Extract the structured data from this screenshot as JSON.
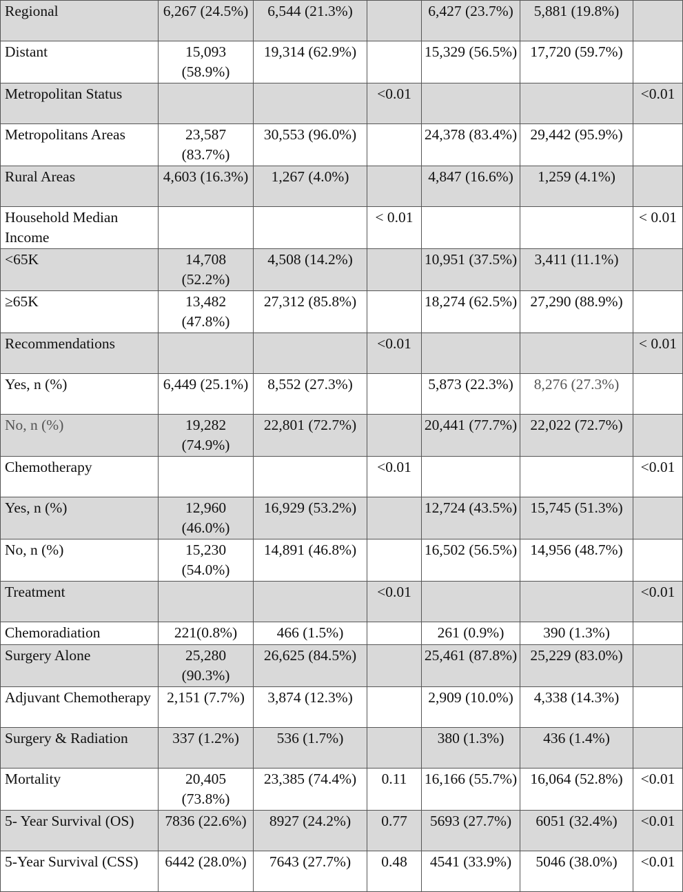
{
  "rows": [
    {
      "label": "Regional",
      "cells": [
        "6,267 (24.5%)",
        "6,544 (21.3%)",
        "",
        "6,427 (23.7%)",
        "5,881 (19.8%)",
        ""
      ]
    },
    {
      "label": "Distant",
      "cells": [
        "15,093 (58.9%)",
        "19,314 (62.9%)",
        "",
        "15,329 (56.5%)",
        "17,720 (59.7%)",
        ""
      ]
    },
    {
      "label": "Metropolitan Status",
      "cells": [
        "",
        "",
        "<0.01",
        "",
        "",
        "<0.01"
      ]
    },
    {
      "label": "Metropolitans Areas",
      "cells": [
        "23,587 (83.7%)",
        "30,553 (96.0%)",
        "",
        "24,378 (83.4%)",
        "29,442 (95.9%)",
        ""
      ]
    },
    {
      "label": "Rural Areas",
      "cells": [
        "4,603 (16.3%)",
        "1,267 (4.0%)",
        "",
        "4,847 (16.6%)",
        "1,259 (4.1%)",
        ""
      ]
    },
    {
      "label": "Household Median Income",
      "cells": [
        "",
        "",
        "< 0.01",
        "",
        "",
        "< 0.01"
      ]
    },
    {
      "label": "<65K",
      "cells": [
        "14,708 (52.2%)",
        "4,508 (14.2%)",
        "",
        "10,951 (37.5%)",
        "3,411 (11.1%)",
        ""
      ]
    },
    {
      "label": "≥65K",
      "cells": [
        "13,482 (47.8%)",
        "27,312 (85.8%)",
        "",
        "18,274 (62.5%)",
        "27,290 (88.9%)",
        ""
      ]
    },
    {
      "label": "Recommendations",
      "cells": [
        "",
        "",
        "<0.01",
        "",
        "",
        "< 0.01"
      ]
    },
    {
      "label": "Yes, n (%)",
      "cells": [
        "6,449 (25.1%)",
        "8,552 (27.3%)",
        "",
        "5,873 (22.3%)",
        "8,276 (27.3%)",
        ""
      ]
    },
    {
      "label": "No, n (%)",
      "cells": [
        "19,282 (74.9%)",
        "22,801 (72.7%)",
        "",
        "20,441 (77.7%)",
        "22,022 (72.7%)",
        ""
      ]
    },
    {
      "label": "Chemotherapy",
      "cells": [
        "",
        "",
        "<0.01",
        "",
        "",
        "<0.01"
      ]
    },
    {
      "label": "Yes, n (%)",
      "cells": [
        "12,960 (46.0%)",
        "16,929 (53.2%)",
        "",
        "12,724 (43.5%)",
        "15,745 (51.3%)",
        ""
      ]
    },
    {
      "label": "No, n (%)",
      "cells": [
        "15,230 (54.0%)",
        "14,891 (46.8%)",
        "",
        "16,502 (56.5%)",
        "14,956 (48.7%)",
        ""
      ]
    },
    {
      "label": "Treatment",
      "cells": [
        "",
        "",
        "<0.01",
        "",
        "",
        "<0.01"
      ]
    },
    {
      "label": "Chemoradiation",
      "cells": [
        "221(0.8%)",
        "466 (1.5%)",
        "",
        "261 (0.9%)",
        "390 (1.3%)",
        ""
      ]
    },
    {
      "label": "Surgery Alone",
      "cells": [
        "25,280 (90.3%)",
        "26,625 (84.5%)",
        "",
        "25,461 (87.8%)",
        "25,229 (83.0%)",
        ""
      ]
    },
    {
      "label": "Adjuvant Chemotherapy",
      "cells": [
        "2,151 (7.7%)",
        "3,874 (12.3%)",
        "",
        "2,909 (10.0%)",
        "4,338 (14.3%)",
        ""
      ]
    },
    {
      "label": "Surgery & Radiation",
      "cells": [
        "337 (1.2%)",
        "536 (1.7%)",
        "",
        "380 (1.3%)",
        "436 (1.4%)",
        ""
      ]
    },
    {
      "label": "Mortality",
      "cells": [
        "20,405 (73.8%)",
        "23,385 (74.4%)",
        "0.11",
        "16,166 (55.7%)",
        "16,064 (52.8%)",
        "<0.01"
      ]
    },
    {
      "label": "5- Year Survival (OS)",
      "cells": [
        "7836 (22.6%)",
        "8927 (24.2%)",
        "0.77",
        "5693 (27.7%)",
        "6051 (32.4%)",
        "<0.01"
      ]
    },
    {
      "label": "5-Year Survival (CSS)",
      "cells": [
        "6442 (28.0%)",
        "7643 (27.7%)",
        "0.48",
        "4541 (33.9%)",
        "5046 (38.0%)",
        "<0.01"
      ]
    }
  ]
}
